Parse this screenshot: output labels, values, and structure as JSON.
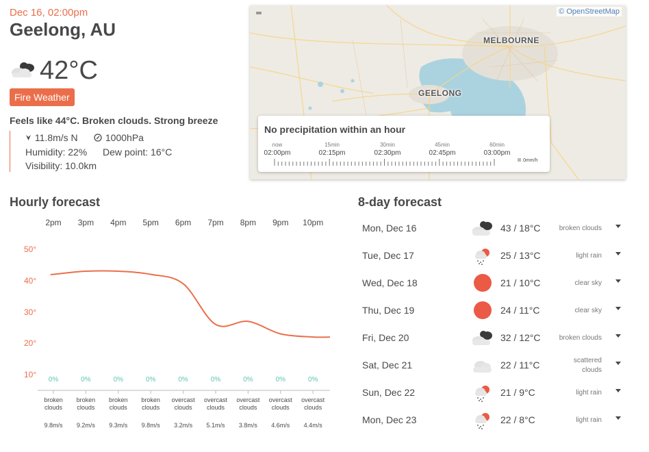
{
  "current": {
    "datetime": "Dec 16, 02:00pm",
    "city": "Geelong, AU",
    "temp": "42°C",
    "alert": "Fire Weather",
    "feels": "Feels like 44°C. Broken clouds. Strong breeze",
    "wind": "11.8m/s N",
    "pressure": "1000hPa",
    "humidity": "Humidity: 22%",
    "dew_point": "Dew point: 16°C",
    "visibility": "Visibility: 10.0km",
    "icon": "broken-clouds"
  },
  "map": {
    "attribution": "© OpenStreetMap",
    "labels": {
      "melbourne": "MELBOURNE",
      "geelong": "GEELONG"
    },
    "precip": {
      "title": "No precipitation within an hour",
      "offsets": [
        "now",
        "15min",
        "30min",
        "45min",
        "60min"
      ],
      "times": [
        "02:00pm",
        "02:15pm",
        "02:30pm",
        "02:45pm",
        "03:00pm"
      ],
      "legend": "0mm/h"
    }
  },
  "hourly": {
    "title": "Hourly forecast",
    "hours": [
      "2pm",
      "3pm",
      "4pm",
      "5pm",
      "6pm",
      "7pm",
      "8pm",
      "9pm",
      "10pm"
    ],
    "y_ticks": [
      "50°",
      "40°",
      "30°",
      "20°",
      "10°"
    ],
    "pop": [
      "0%",
      "0%",
      "0%",
      "0%",
      "0%",
      "0%",
      "0%",
      "0%",
      "0%"
    ],
    "desc": [
      [
        "broken",
        "clouds"
      ],
      [
        "broken",
        "clouds"
      ],
      [
        "broken",
        "clouds"
      ],
      [
        "broken",
        "clouds"
      ],
      [
        "overcast",
        "clouds"
      ],
      [
        "overcast",
        "clouds"
      ],
      [
        "overcast",
        "clouds"
      ],
      [
        "overcast",
        "clouds"
      ],
      [
        "overcast",
        "clouds"
      ]
    ],
    "wind": [
      "9.8m/s",
      "9.2m/s",
      "9.3m/s",
      "9.8m/s",
      "3.2m/s",
      "5.1m/s",
      "3.8m/s",
      "4.6m/s",
      "4.4m/s"
    ]
  },
  "chart_data": {
    "type": "line",
    "categories": [
      "2pm",
      "3pm",
      "4pm",
      "5pm",
      "6pm",
      "7pm",
      "8pm",
      "9pm",
      "10pm"
    ],
    "series": [
      {
        "values": [
          42,
          43,
          43,
          42,
          39,
          26,
          27,
          23,
          22
        ]
      }
    ],
    "ylim": [
      10,
      50
    ],
    "y_ticks": [
      50,
      40,
      30,
      20,
      10
    ],
    "color": "#eb6e4b"
  },
  "daily": {
    "title": "8-day forecast",
    "days": [
      {
        "date": "Mon, Dec 16",
        "temp": "43 / 18°C",
        "desc": "broken clouds",
        "icon": "broken-clouds"
      },
      {
        "date": "Tue, Dec 17",
        "temp": "25 / 13°C",
        "desc": "light rain",
        "icon": "light-rain"
      },
      {
        "date": "Wed, Dec 18",
        "temp": "21 / 10°C",
        "desc": "clear sky",
        "icon": "clear-sky"
      },
      {
        "date": "Thu, Dec 19",
        "temp": "24 / 11°C",
        "desc": "clear sky",
        "icon": "clear-sky"
      },
      {
        "date": "Fri, Dec 20",
        "temp": "32 / 12°C",
        "desc": "broken clouds",
        "icon": "broken-clouds"
      },
      {
        "date": "Sat, Dec 21",
        "temp": "22 / 11°C",
        "desc": "scattered clouds",
        "icon": "scattered-clouds"
      },
      {
        "date": "Sun, Dec 22",
        "temp": "21 / 9°C",
        "desc": "light rain",
        "icon": "light-rain"
      },
      {
        "date": "Mon, Dec 23",
        "temp": "22 / 8°C",
        "desc": "light rain",
        "icon": "light-rain"
      }
    ]
  },
  "colors": {
    "accent": "#eb6e4b",
    "text": "#48484a",
    "pop": "#5fc3b0",
    "link": "#4a7fb5"
  }
}
